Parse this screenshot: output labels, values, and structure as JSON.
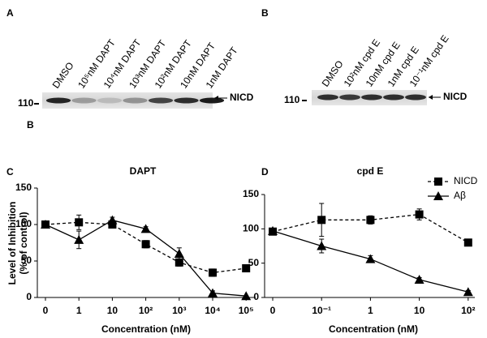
{
  "blots": [
    {
      "panel": "A",
      "lanes": [
        "DMSO",
        "10⁵nM DAPT",
        "10⁴nM DAPT",
        "10³nM DAPT",
        "10²nM DAPT",
        "10nM DAPT",
        "1nM DAPT"
      ],
      "marker": "110",
      "band": "NICD"
    },
    {
      "panel": "B",
      "lanes": [
        "DMSO",
        "10²nM cpd E",
        "10nM cpd E",
        "1nM cpd E",
        "10⁻¹nM cpd E"
      ],
      "marker": "110",
      "band": "NICD"
    }
  ],
  "stray_label": "B",
  "chart_data": [
    {
      "type": "line",
      "panel": "C",
      "title": "DAPT",
      "xlabel": "Concentration (nM)",
      "ylabel": [
        "Level of Inhibition",
        "(% of control)"
      ],
      "categories": [
        "0",
        "1",
        "10",
        "10²",
        "10³",
        "10⁴",
        "10⁵"
      ],
      "ylim": [
        0,
        150
      ],
      "yticks": [
        0,
        50,
        100,
        150
      ],
      "series": [
        {
          "color": "#000000",
          "line_style": "dashed",
          "marker": "square",
          "values": [
            100,
            103,
            100,
            73,
            48,
            34,
            40
          ],
          "errors": [
            0,
            10,
            5,
            5,
            5,
            5,
            5
          ]
        },
        {
          "color": "#000000",
          "line_style": "solid",
          "marker": "triangle",
          "values": [
            100,
            79,
            106,
            94,
            60,
            6,
            2
          ],
          "errors": [
            0,
            12,
            4,
            3,
            8,
            3,
            0
          ]
        }
      ]
    },
    {
      "type": "line",
      "panel": "D",
      "title": "cpd E",
      "xlabel": "Concentration (nM)",
      "categories": [
        "0",
        "10⁻¹",
        "1",
        "10",
        "10²"
      ],
      "ylim": [
        0,
        150
      ],
      "yticks": [
        0,
        50,
        100,
        150
      ],
      "legend": "upper right",
      "series": [
        {
          "name": "NICD",
          "color": "#000000",
          "line_style": "dashed",
          "marker": "square",
          "values": [
            96,
            113,
            113,
            121,
            80
          ],
          "errors": [
            0,
            24,
            6,
            8,
            4
          ]
        },
        {
          "name": "Aβ",
          "color": "#000000",
          "line_style": "solid",
          "marker": "triangle",
          "values": [
            97,
            75,
            56,
            26,
            8
          ],
          "errors": [
            0,
            10,
            5,
            3,
            2
          ]
        }
      ]
    }
  ]
}
